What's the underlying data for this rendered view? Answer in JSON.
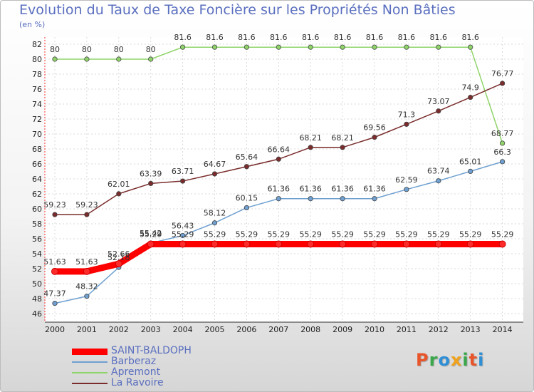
{
  "header": {
    "title": "Evolution du Taux de Taxe Foncière sur les Propriétés Non Bâties",
    "unit": "(en %)"
  },
  "logo": {
    "letters": [
      {
        "char": "P",
        "color": "#e8552a"
      },
      {
        "char": "r",
        "color": "#3aa84a"
      },
      {
        "char": "o",
        "color": "#2e8fd6"
      },
      {
        "char": "x",
        "color": "#f0a21c"
      },
      {
        "char": "i",
        "color": "#3aa84a"
      },
      {
        "char": "t",
        "color": "#e8552a"
      },
      {
        "char": "i",
        "color": "#2e8fd6"
      }
    ],
    "text": "Proxiti"
  },
  "chart_data": {
    "type": "line",
    "title": "Evolution du Taux de Taxe Foncière sur les Propriétés Non Bâties",
    "ylabel": "(en %)",
    "xlabel": "",
    "ylim": [
      46,
      82
    ],
    "ytick_step": 2,
    "grid": true,
    "legend": "bottom-left",
    "x": [
      "2000",
      "2001",
      "2002",
      "2003",
      "2004",
      "2005",
      "2006",
      "2007",
      "2008",
      "2009",
      "2010",
      "2011",
      "2012",
      "2013",
      "2014"
    ],
    "series": [
      {
        "name": "SAINT-BALDOPH",
        "color": "#ff0000",
        "legend_color": "#5a6fbf",
        "values": [
          51.63,
          51.63,
          52.66,
          55.29,
          55.29,
          55.29,
          55.29,
          55.29,
          55.29,
          55.29,
          55.29,
          55.29,
          55.29,
          55.29,
          55.29
        ],
        "labels": [
          "51.63",
          "51.63",
          "52.66",
          "55.29",
          "55.29",
          "55.29",
          "55.29",
          "55.29",
          "55.29",
          "55.29",
          "55.29",
          "55.29",
          "55.29",
          "55.29",
          "55.29"
        ]
      },
      {
        "name": "Barberaz",
        "color": "#6fa0d0",
        "legend_color": "#5a6fbf",
        "values": [
          47.37,
          48.32,
          52.18,
          55.42,
          56.43,
          58.12,
          60.15,
          61.36,
          61.36,
          61.36,
          61.36,
          62.59,
          63.74,
          65.01,
          66.3
        ],
        "labels": [
          "47.37",
          "48.32",
          "52.18",
          "55.42",
          "56.43",
          "58.12",
          "60.15",
          "61.36",
          "61.36",
          "61.36",
          "61.36",
          "62.59",
          "63.74",
          "65.01",
          "66.3"
        ]
      },
      {
        "name": "Apremont",
        "color": "#8fd46a",
        "legend_color": "#5a6fbf",
        "values": [
          80,
          80,
          80,
          80,
          81.6,
          81.6,
          81.6,
          81.6,
          81.6,
          81.6,
          81.6,
          81.6,
          81.6,
          81.6,
          68.77
        ],
        "labels": [
          "80",
          "80",
          "80",
          "80",
          "81.6",
          "81.6",
          "81.6",
          "81.6",
          "81.6",
          "81.6",
          "81.6",
          "81.6",
          "81.6",
          "81.6",
          "68.77"
        ]
      },
      {
        "name": "La Ravoire",
        "color": "#7a2c2c",
        "legend_color": "#5a6fbf",
        "values": [
          59.23,
          59.23,
          62.01,
          63.39,
          63.71,
          64.67,
          65.64,
          66.64,
          68.21,
          68.21,
          69.56,
          71.3,
          73.07,
          74.9,
          76.77
        ],
        "labels": [
          "59.23",
          "59.23",
          "62.01",
          "63.39",
          "63.71",
          "64.67",
          "65.64",
          "66.64",
          "68.21",
          "68.21",
          "69.56",
          "71.3",
          "73.07",
          "74.9",
          "76.77"
        ]
      }
    ]
  }
}
